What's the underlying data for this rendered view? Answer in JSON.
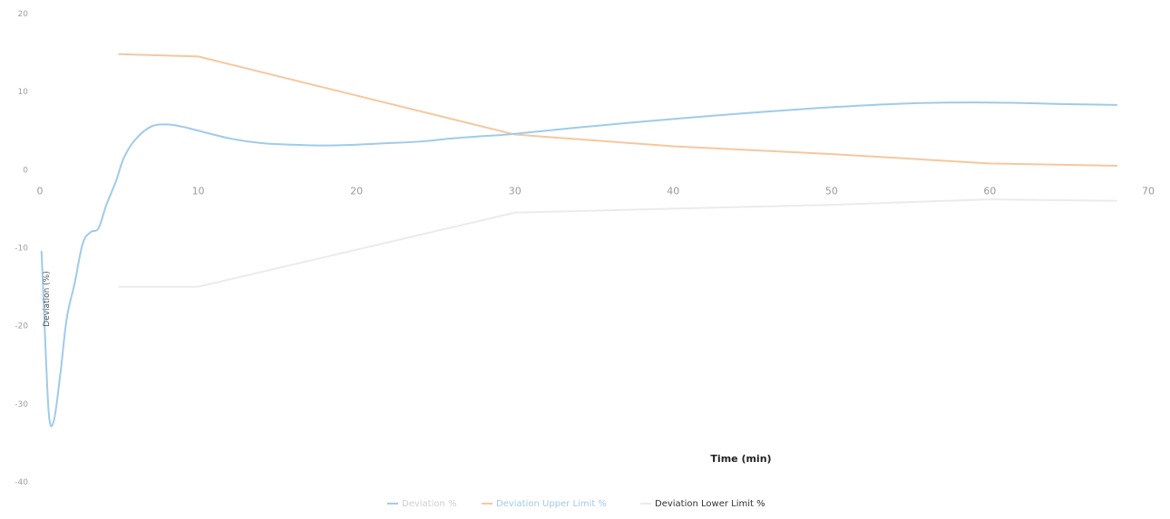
{
  "chart_data": {
    "type": "line",
    "xlabel": "Time (min)",
    "ylabel": "Deviation (%)",
    "xlim": [
      0,
      70
    ],
    "ylim": [
      -40,
      20
    ],
    "x_ticks": [
      "0",
      "10",
      "20",
      "30",
      "40",
      "50",
      "60",
      "70"
    ],
    "y_ticks": [
      "20",
      "10",
      "0",
      "-10",
      "-20",
      "-30",
      "-40"
    ],
    "grid": false,
    "legend_position": "bottom",
    "series": [
      {
        "name": "Deviation %",
        "color": "#9fcbea",
        "x": [
          0.1,
          0.2,
          0.4,
          0.6,
          0.9,
          1.3,
          1.7,
          2.2,
          2.7,
          3.2,
          3.7,
          4.2,
          4.8,
          5.3,
          6,
          7,
          8,
          9,
          10,
          12,
          14,
          16,
          18,
          20,
          22,
          24,
          26,
          28,
          30,
          35,
          40,
          45,
          50,
          55,
          60,
          65,
          68
        ],
        "y": [
          -10.5,
          -15,
          -25,
          -32,
          -32,
          -26,
          -19,
          -14.5,
          -9.5,
          -8,
          -7.5,
          -4.5,
          -1.5,
          1.5,
          3.8,
          5.5,
          5.8,
          5.5,
          5,
          4,
          3.4,
          3.2,
          3.1,
          3.2,
          3.4,
          3.6,
          4,
          4.3,
          4.6,
          5.6,
          6.5,
          7.3,
          8,
          8.5,
          8.6,
          8.4,
          8.3
        ]
      },
      {
        "name": "Deviation Upper Limit %",
        "color": "#f6c79e",
        "x": [
          5,
          10,
          30,
          40,
          50,
          60,
          68
        ],
        "y": [
          14.8,
          14.5,
          4.5,
          3,
          2,
          0.8,
          0.5
        ]
      },
      {
        "name": "Deviation Lower Limit %",
        "color": "#ebebeb",
        "x": [
          5,
          10,
          30,
          40,
          50,
          60,
          68
        ],
        "y": [
          -15,
          -15,
          -5.5,
          -5,
          -4.5,
          -3.8,
          -4
        ]
      }
    ]
  }
}
